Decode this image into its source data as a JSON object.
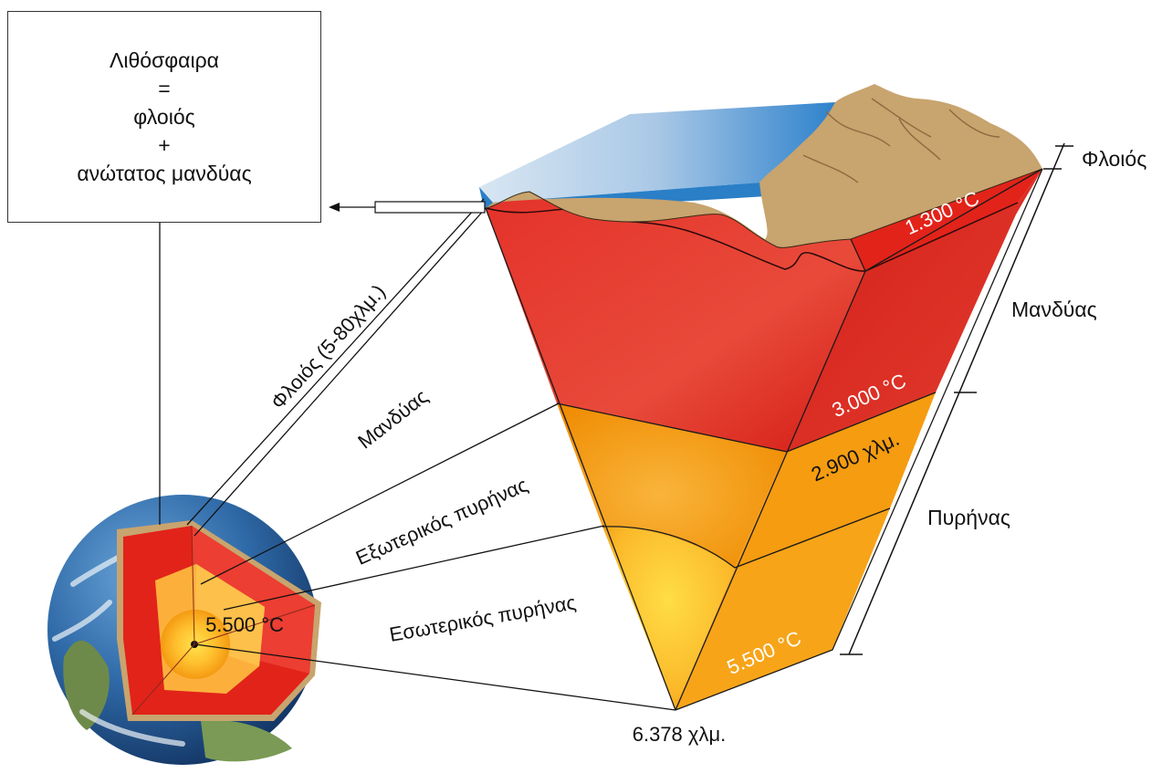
{
  "infobox": {
    "line1": "Λιθόσφαιρα",
    "line2": "=",
    "line3": "φλοιός",
    "line4": "+",
    "line5": "ανώτατος μανδύας"
  },
  "labels": {
    "crust_range": "Φλοιός (5-80χλμ.)",
    "mantle_diag": "Μανδύας",
    "outer_core": "Εξωτερικός πυρήνας",
    "inner_core": "Εσωτερικός πυρήνας",
    "globe_temp": "5.500 °C",
    "radius": "6.378 χλμ.",
    "temp_crust": "1.300 °C",
    "temp_mantle": "3.000 °C",
    "depth_mantle": "2.900 χλμ.",
    "temp_core": "5.500 °C",
    "scale_crust": "Φλοιός",
    "scale_mantle": "Μανδύας",
    "scale_core": "Πυρήνας"
  },
  "colors": {
    "mantle": "#e2231a",
    "outer_core": "#f39200",
    "inner_core": "#fdd835",
    "crust": "#c8a46e",
    "ocean": "#3a8fd0"
  }
}
